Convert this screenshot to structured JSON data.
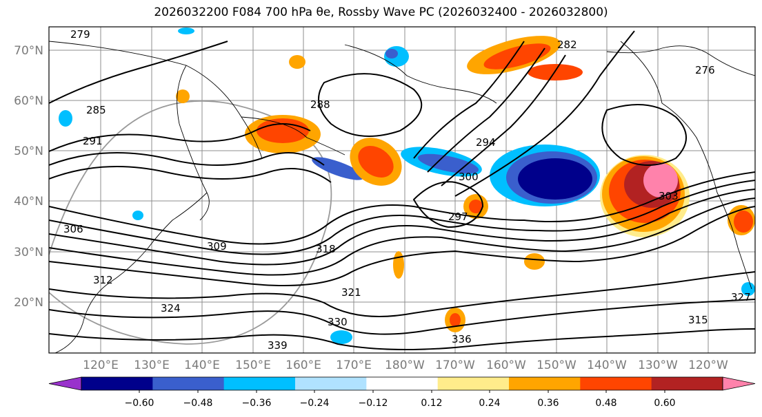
{
  "title": "2026032200 F084 700 hPa θe, Rossby Wave PC (2026032400 - 2026032800)",
  "map": {
    "lat_labels": [
      "70°N",
      "60°N",
      "50°N",
      "40°N",
      "30°N",
      "20°N"
    ],
    "lon_labels": [
      "120°E",
      "130°E",
      "140°E",
      "150°E",
      "160°E",
      "170°E",
      "180°W",
      "170°W",
      "160°W",
      "150°W",
      "140°W",
      "130°W",
      "120°W"
    ],
    "contour_labels": [
      "279",
      "285",
      "291",
      "288",
      "294",
      "300",
      "306",
      "309",
      "318",
      "321",
      "324",
      "327",
      "330",
      "336",
      "339",
      "297",
      "303",
      "312",
      "315",
      "282",
      "276"
    ],
    "colors": {
      "neg_060": "#9932cc",
      "neg_048": "#00008b",
      "neg_036": "#3a5fcd",
      "neg_024": "#00bfff",
      "neg_012": "#b0e2ff",
      "zero": "#ffffff",
      "pos_012": "#ffec8b",
      "pos_024": "#ffa500",
      "pos_036": "#ff4500",
      "pos_048": "#b22222",
      "pos_060": "#ff82ab"
    }
  },
  "colorbar": {
    "tick_labels": [
      "−0.60",
      "−0.48",
      "−0.36",
      "−0.24",
      "−0.12",
      "0.12",
      "0.24",
      "0.36",
      "0.48",
      "0.60"
    ],
    "levels": [
      "#9932cc",
      "#00008b",
      "#3a5fcd",
      "#00bfff",
      "#b0e2ff",
      "#ffffff",
      "#ffec8b",
      "#ffa500",
      "#ff4500",
      "#b22222",
      "#ff82ab"
    ]
  }
}
